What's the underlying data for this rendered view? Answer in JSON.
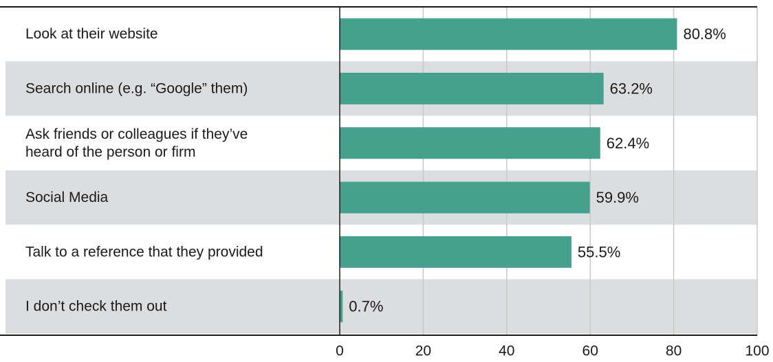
{
  "chart_data": {
    "type": "bar",
    "orientation": "horizontal",
    "categories": [
      [
        "Look at their website"
      ],
      [
        "Search online (e.g. “Google” them)"
      ],
      [
        "Ask friends or colleagues if they’ve",
        "heard of the person or firm"
      ],
      [
        "Social Media"
      ],
      [
        "Talk to a reference that they provided"
      ],
      [
        "I don’t check them out"
      ]
    ],
    "values": [
      80.8,
      63.2,
      62.4,
      59.9,
      55.5,
      0.7
    ],
    "value_labels": [
      "80.8%",
      "63.2%",
      "62.4%",
      "59.9%",
      "55.5%",
      "0.7%"
    ],
    "xlim": [
      0,
      100
    ],
    "xticks": [
      0,
      20,
      40,
      60,
      80,
      100
    ],
    "grid": true,
    "bar_color": "#45a08e",
    "row_band_color": "#dcdddf",
    "grid_color": "#c8c8c8"
  }
}
